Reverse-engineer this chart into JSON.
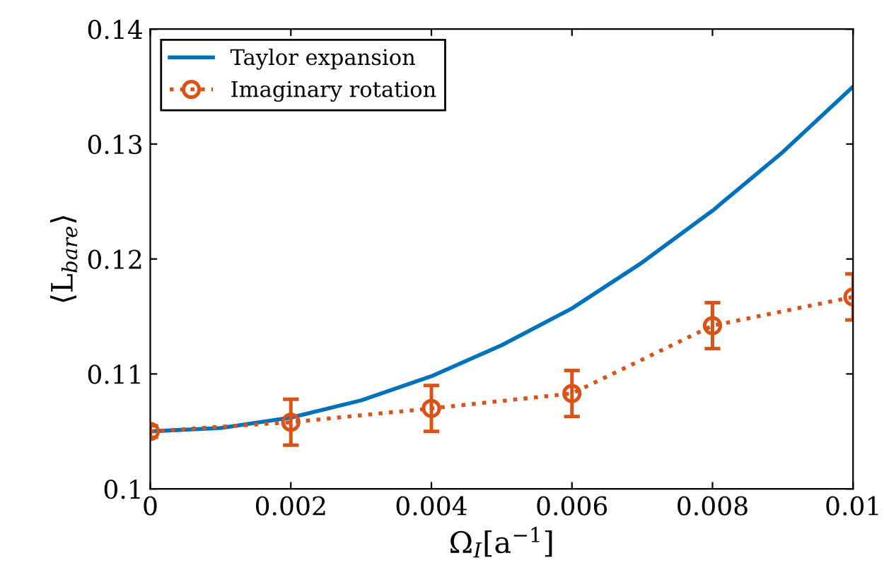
{
  "chart_data": {
    "type": "line",
    "xlabel": "Ω$_{I}$[a$^{−1}$]",
    "ylabel": "⟨L$_{bare}$⟩",
    "x": [
      0,
      0.002,
      0.004,
      0.006,
      0.008,
      0.01
    ],
    "series": [
      {
        "name": "Taylor expansion",
        "color": "#0072bd",
        "line_style": "solid",
        "marker": "none",
        "x": [
          0,
          0.001,
          0.002,
          0.003,
          0.004,
          0.005,
          0.006,
          0.007,
          0.008,
          0.009,
          0.01
        ],
        "values": [
          0.105,
          0.1053,
          0.1062,
          0.1077,
          0.1098,
          0.1125,
          0.1157,
          0.1197,
          0.1242,
          0.1293,
          0.135
        ]
      },
      {
        "name": "Imaginary rotation",
        "color": "#d95319",
        "type": "line",
        "line_style": "dotted",
        "marker": "circle",
        "values": [
          0.105,
          0.1058,
          0.107,
          0.1083,
          0.1142,
          0.1167
        ],
        "errors": [
          0.0005,
          0.002,
          0.002,
          0.002,
          0.002,
          0.002
        ]
      }
    ],
    "xlim": [
      0,
      0.01
    ],
    "xticks": [
      0,
      0.002,
      0.004,
      0.006,
      0.008,
      0.01
    ],
    "ylim": [
      0.1,
      0.14
    ],
    "yticks": [
      0.1,
      0.11,
      0.12,
      0.13,
      0.14
    ],
    "grid": false,
    "legend": "top left"
  }
}
